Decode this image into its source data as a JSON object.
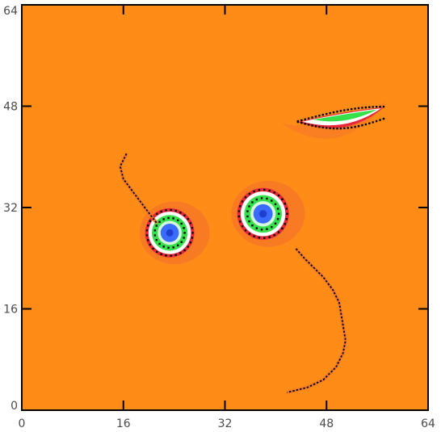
{
  "chart_data": {
    "type": "heatmap",
    "title": "",
    "xlabel": "",
    "ylabel": "",
    "xlim": [
      0,
      64
    ],
    "ylim": [
      0,
      64
    ],
    "x_ticks": [
      0,
      16,
      32,
      48,
      64
    ],
    "y_ticks": [
      0,
      16,
      32,
      48,
      64
    ],
    "x_tick_labels": [
      "0",
      "16",
      "32",
      "48",
      "64"
    ],
    "y_tick_labels": [
      "0",
      "16",
      "32",
      "48",
      "64"
    ],
    "grid": false,
    "background_color": "#ff8c17",
    "palette": {
      "background": "#ff8c17",
      "halo": "#f5762a",
      "red": "#e8283a",
      "white": "#ffffff",
      "green": "#35e04a",
      "blue": "#3a6cff",
      "dark": "#000000"
    },
    "features": [
      {
        "name": "left-vortex",
        "center": [
          23.3,
          28.0
        ],
        "radius": 3.8
      },
      {
        "name": "center-vortex",
        "center": [
          38.0,
          31.0
        ],
        "radius": 4.0
      },
      {
        "name": "upper-right-filament",
        "extent_x": [
          43.5,
          57.0
        ],
        "center_y": 45.5
      }
    ],
    "streams": [
      {
        "name": "left-arc",
        "points": [
          [
            16.5,
            40.5
          ],
          [
            15.5,
            38.5
          ],
          [
            16.0,
            36.5
          ],
          [
            17.5,
            34.5
          ],
          [
            19.0,
            32.5
          ],
          [
            20.5,
            30.5
          ],
          [
            21.3,
            29.5
          ]
        ]
      },
      {
        "name": "right-arc",
        "points": [
          [
            43.2,
            25.5
          ],
          [
            44.5,
            24.0
          ],
          [
            46.0,
            22.5
          ],
          [
            47.5,
            21.0
          ],
          [
            49.0,
            19.0
          ],
          [
            50.0,
            17.0
          ],
          [
            50.5,
            14.0
          ],
          [
            51.0,
            11.0
          ],
          [
            50.6,
            9.0
          ],
          [
            49.5,
            6.8
          ],
          [
            47.5,
            4.8
          ],
          [
            45.0,
            3.6
          ],
          [
            41.8,
            2.8
          ]
        ]
      }
    ]
  }
}
